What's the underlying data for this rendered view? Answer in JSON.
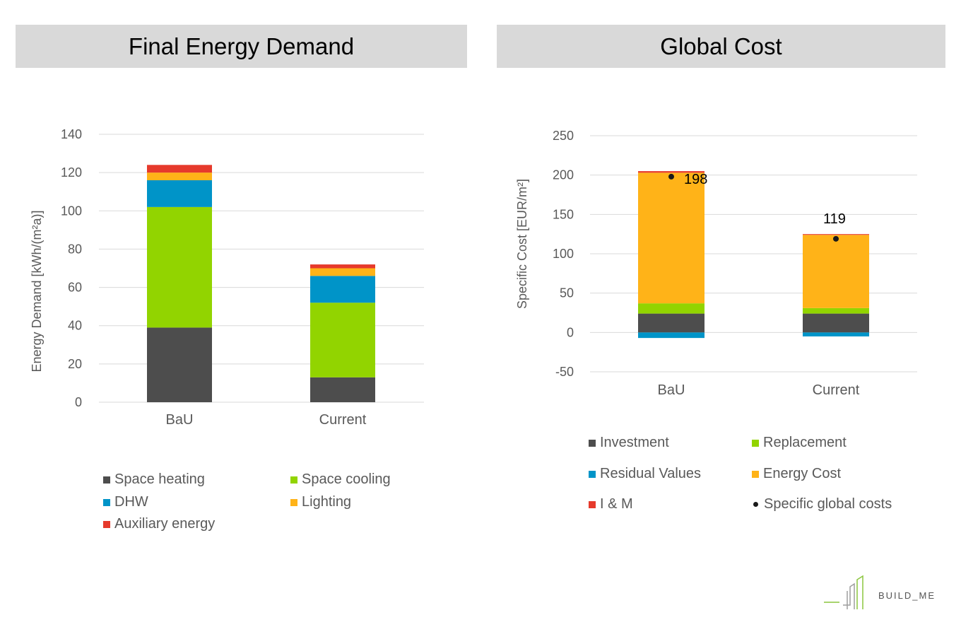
{
  "colors": {
    "dark_gray": "#4d4d4d",
    "green": "#92d400",
    "blue": "#0094c8",
    "orange": "#ffb318",
    "red": "#e63a2c",
    "black": "#1a1a1a"
  },
  "chart_data": [
    {
      "type": "bar",
      "stacked": true,
      "title": "Final Energy Demand",
      "ylabel": "Energy Demand [kWh/(m²a)]",
      "categories": [
        "BaU",
        "Current"
      ],
      "ylim": [
        0,
        140
      ],
      "yticks": [
        0,
        20,
        40,
        60,
        80,
        100,
        120,
        140
      ],
      "grid": true,
      "legend_position": "bottom",
      "series": [
        {
          "name": "Space heating",
          "color": "#4d4d4d",
          "values": [
            39,
            13
          ]
        },
        {
          "name": "Space cooling",
          "color": "#92d400",
          "values": [
            63,
            39
          ]
        },
        {
          "name": "DHW",
          "color": "#0094c8",
          "values": [
            14,
            14
          ]
        },
        {
          "name": "Lighting",
          "color": "#ffb318",
          "values": [
            4,
            4
          ]
        },
        {
          "name": "Auxiliary energy",
          "color": "#e63a2c",
          "values": [
            4,
            2
          ]
        }
      ]
    },
    {
      "type": "bar",
      "stacked": true,
      "title": "Global Cost",
      "ylabel": "Specific Cost [EUR/m²]",
      "categories": [
        "BaU",
        "Current"
      ],
      "ylim": [
        -50,
        250
      ],
      "yticks": [
        -50,
        0,
        50,
        100,
        150,
        200,
        250
      ],
      "grid": true,
      "legend_position": "bottom",
      "series": [
        {
          "name": "Investment",
          "color": "#4d4d4d",
          "values": [
            24,
            24
          ]
        },
        {
          "name": "Replacement",
          "color": "#92d400",
          "values": [
            13,
            7
          ]
        },
        {
          "name": "Residual Values",
          "color": "#0094c8",
          "values": [
            -7,
            -5
          ]
        },
        {
          "name": "Energy Cost",
          "color": "#ffb318",
          "values": [
            166,
            93
          ]
        },
        {
          "name": "I & M",
          "color": "#e63a2c",
          "values": [
            2,
            1
          ]
        }
      ],
      "points": {
        "name": "Specific global costs",
        "color": "#1a1a1a",
        "values": [
          198,
          119
        ],
        "labels": [
          "198",
          "119"
        ]
      }
    }
  ],
  "logo": {
    "text": "BUILD_ME"
  }
}
